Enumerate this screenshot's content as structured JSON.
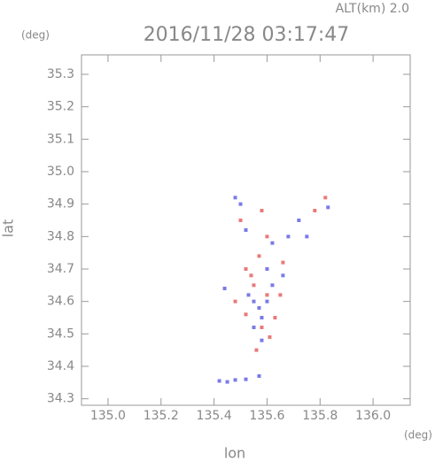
{
  "chart_data": {
    "type": "scatter",
    "title": "2016/11/28 03:17:47",
    "subtitle": "ALT(km) 2.0",
    "x_label": "lon",
    "y_label": "lat",
    "x_unit": "(deg)",
    "y_unit": "(deg)",
    "xlim": [
      134.9,
      136.14
    ],
    "ylim": [
      34.28,
      35.36
    ],
    "xticks": [
      {
        "value": 135,
        "label": "135.0"
      },
      135.2,
      135.4,
      135.6,
      135.8,
      {
        "value": 136,
        "label": "136.0"
      }
    ],
    "yticks": [
      34.3,
      34.4,
      34.5,
      34.6,
      34.7,
      34.8,
      34.9,
      {
        "value": 35,
        "label": "35.0"
      },
      35.1,
      35.2,
      35.3
    ],
    "series": [
      {
        "color": "#7a7ae8",
        "x": [
          135.42,
          135.45,
          135.48,
          135.52,
          135.57,
          135.6,
          135.55,
          135.58,
          135.62,
          135.66,
          135.5,
          135.48,
          135.72,
          135.68,
          135.62,
          135.58,
          135.55,
          135.53,
          135.6,
          135.52,
          135.83,
          135.75,
          135.44,
          135.57
        ],
        "y": [
          34.355,
          34.352,
          34.358,
          34.36,
          34.37,
          34.6,
          34.6,
          34.55,
          34.65,
          34.68,
          34.9,
          34.92,
          34.85,
          34.8,
          34.78,
          34.48,
          34.52,
          34.62,
          34.7,
          34.82,
          34.89,
          34.8,
          34.64,
          34.58
        ]
      },
      {
        "color": "#e87a7a",
        "x": [
          135.55,
          135.6,
          135.52,
          135.58,
          135.63,
          135.56,
          135.54,
          135.65,
          135.48,
          135.82,
          135.78,
          135.5,
          135.6,
          135.57,
          135.66,
          135.58,
          135.52,
          135.61
        ],
        "y": [
          34.65,
          34.62,
          34.7,
          34.52,
          34.55,
          34.45,
          34.68,
          34.62,
          34.6,
          34.92,
          34.88,
          34.85,
          34.8,
          34.74,
          34.72,
          34.88,
          34.56,
          34.49
        ]
      }
    ]
  }
}
